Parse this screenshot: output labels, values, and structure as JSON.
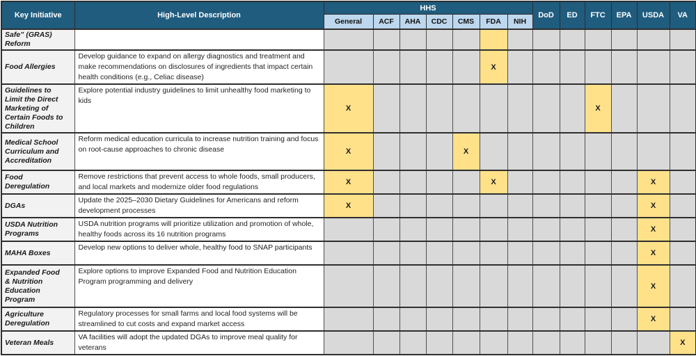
{
  "colors": {
    "header_teal": "#1F5C7E",
    "subheader_blue": "#BDD7EE",
    "highlight_yellow": "#FFE18A",
    "cell_gray": "#D9D9D9",
    "initiative_gray": "#F2F2F2"
  },
  "table": {
    "mark": "X",
    "header": {
      "key_initiative": "Key Initiative",
      "high_level_description": "High-Level Description",
      "hhs_group": "HHS",
      "hhs_sub": [
        "General",
        "ACF",
        "AHA",
        "CDC",
        "CMS",
        "FDA",
        "NIH"
      ],
      "agencies": [
        "DoD",
        "ED",
        "FTC",
        "EPA",
        "USDA",
        "VA"
      ]
    },
    "columns": [
      "General",
      "ACF",
      "AHA",
      "CDC",
      "CMS",
      "FDA",
      "NIH",
      "DoD",
      "ED",
      "FTC",
      "EPA",
      "USDA",
      "VA"
    ],
    "rows": [
      {
        "initiative": "Safe” (GRAS)\nReform",
        "description": "",
        "cells": [
          "",
          "",
          "",
          "",
          "",
          "hl",
          "",
          "",
          "",
          "",
          "",
          "",
          ""
        ]
      },
      {
        "initiative": "Food Allergies",
        "description": "Develop guidance to expand on allergy diagnostics and treatment and make recommendations on disclosures of ingredients that impact certain health conditions (e.g., Celiac disease)",
        "cells": [
          "",
          "",
          "",
          "",
          "",
          "x",
          "",
          "",
          "",
          "",
          "",
          "",
          ""
        ]
      },
      {
        "initiative": "Guidelines to\nLimit the Direct\nMarketing of\nCertain Foods to\nChildren",
        "description": "Explore potential industry guidelines to limit unhealthy food marketing to kids",
        "cells": [
          "x",
          "",
          "",
          "",
          "",
          "",
          "",
          "",
          "",
          "x",
          "",
          "",
          ""
        ]
      },
      {
        "initiative": "Medical School\nCurriculum and\nAccreditation",
        "description": "Reform medical education curricula to increase nutrition training and focus on root-cause approaches to chronic disease",
        "cells": [
          "x",
          "",
          "",
          "",
          "x",
          "",
          "",
          "",
          "",
          "",
          "",
          "",
          ""
        ]
      },
      {
        "initiative": "Food\nDeregulation",
        "description": "Remove restrictions that prevent access to whole foods, small producers, and local markets and modernize older food regulations",
        "cells": [
          "x",
          "",
          "",
          "",
          "",
          "x",
          "",
          "",
          "",
          "",
          "",
          "x",
          ""
        ]
      },
      {
        "initiative": "DGAs",
        "description": "Update the 2025–2030 Dietary Guidelines for Americans and reform development processes",
        "cells": [
          "x",
          "",
          "",
          "",
          "",
          "",
          "",
          "",
          "",
          "",
          "",
          "x",
          ""
        ]
      },
      {
        "initiative": "USDA Nutrition\nPrograms",
        "description": "USDA nutrition programs will prioritize utilization and promotion of whole, healthy foods across its 16 nutrition programs",
        "cells": [
          "",
          "",
          "",
          "",
          "",
          "",
          "",
          "",
          "",
          "",
          "",
          "x",
          ""
        ]
      },
      {
        "initiative": "MAHA Boxes",
        "description": "Develop new options to deliver whole, healthy food to SNAP participants",
        "cells": [
          "",
          "",
          "",
          "",
          "",
          "",
          "",
          "",
          "",
          "",
          "",
          "x",
          ""
        ]
      },
      {
        "initiative": "Expanded Food\n& Nutrition\nEducation\nProgram",
        "description": "Explore options to improve Expanded Food and Nutrition Education Program programming and delivery",
        "cells": [
          "",
          "",
          "",
          "",
          "",
          "",
          "",
          "",
          "",
          "",
          "",
          "x",
          ""
        ]
      },
      {
        "initiative": "Agriculture\nDeregulation",
        "description": "Regulatory processes for small farms and local food systems will be streamlined to cut costs and expand market access",
        "cells": [
          "",
          "",
          "",
          "",
          "",
          "",
          "",
          "",
          "",
          "",
          "",
          "x",
          ""
        ]
      },
      {
        "initiative": "Veteran Meals",
        "description": "VA facilities will adopt the updated DGAs to improve meal quality for veterans",
        "cells": [
          "",
          "",
          "",
          "",
          "",
          "",
          "",
          "",
          "",
          "",
          "",
          "",
          "x"
        ]
      }
    ]
  }
}
